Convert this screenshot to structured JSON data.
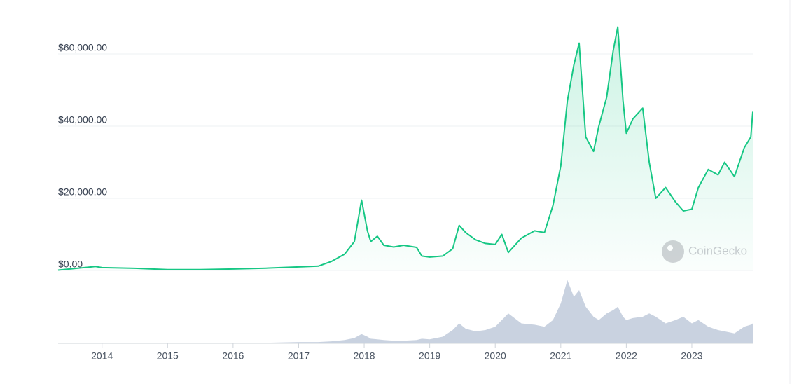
{
  "chart_data": {
    "type": "line",
    "x": [
      2013.33,
      2013.9,
      2014.0,
      2014.5,
      2015.0,
      2015.5,
      2016.0,
      2016.5,
      2017.0,
      2017.3,
      2017.5,
      2017.7,
      2017.85,
      2017.96,
      2018.05,
      2018.1,
      2018.2,
      2018.3,
      2018.45,
      2018.6,
      2018.8,
      2018.88,
      2019.0,
      2019.2,
      2019.35,
      2019.45,
      2019.55,
      2019.7,
      2019.85,
      2020.0,
      2020.1,
      2020.2,
      2020.4,
      2020.6,
      2020.75,
      2020.88,
      2021.0,
      2021.1,
      2021.2,
      2021.28,
      2021.38,
      2021.5,
      2021.58,
      2021.7,
      2021.8,
      2021.87,
      2021.95,
      2022.0,
      2022.1,
      2022.25,
      2022.35,
      2022.45,
      2022.6,
      2022.75,
      2022.87,
      2023.0,
      2023.1,
      2023.25,
      2023.4,
      2023.5,
      2023.65,
      2023.8,
      2023.9,
      2023.93
    ],
    "values": [
      100,
      1100,
      800,
      600,
      250,
      250,
      400,
      650,
      1000,
      1200,
      2500,
      4500,
      8000,
      19500,
      11000,
      8000,
      9500,
      7000,
      6500,
      7000,
      6400,
      4000,
      3700,
      4000,
      6000,
      12500,
      10500,
      8500,
      7500,
      7200,
      10000,
      5000,
      9000,
      11000,
      10500,
      18000,
      29000,
      47000,
      57000,
      63000,
      37000,
      33000,
      40000,
      48000,
      61000,
      67500,
      47000,
      38000,
      42000,
      45000,
      30000,
      20000,
      23000,
      19000,
      16500,
      17000,
      23000,
      28000,
      26500,
      30000,
      26000,
      34000,
      37000,
      44000
    ],
    "volume": [
      0,
      0.5,
      0.3,
      0.2,
      0.2,
      0.3,
      0.5,
      1,
      2,
      2,
      3,
      5,
      8,
      14,
      10,
      7,
      6,
      5,
      4,
      4,
      5,
      7,
      6,
      10,
      20,
      30,
      22,
      18,
      20,
      25,
      35,
      45,
      30,
      28,
      25,
      35,
      60,
      95,
      70,
      80,
      55,
      40,
      35,
      45,
      50,
      55,
      40,
      35,
      38,
      40,
      45,
      40,
      30,
      35,
      40,
      30,
      35,
      25,
      20,
      18,
      15,
      25,
      28,
      30
    ],
    "color": "#16c784",
    "volume_color": "#c9d2e0",
    "xlim": [
      2013.33,
      2023.93
    ],
    "xticks": [
      2014,
      2015,
      2016,
      2017,
      2018,
      2019,
      2020,
      2021,
      2022,
      2023
    ],
    "ylim": [
      0,
      67000
    ],
    "yticks": [
      {
        "value": 0,
        "label": "$0.00"
      },
      {
        "value": 20000,
        "label": "$20,000.00"
      },
      {
        "value": 40000,
        "label": "$40,000.00"
      },
      {
        "value": 60000,
        "label": "$60,000.00"
      }
    ],
    "volume_lim": [
      0,
      100
    ],
    "grid": true,
    "watermark": "CoinGecko"
  }
}
